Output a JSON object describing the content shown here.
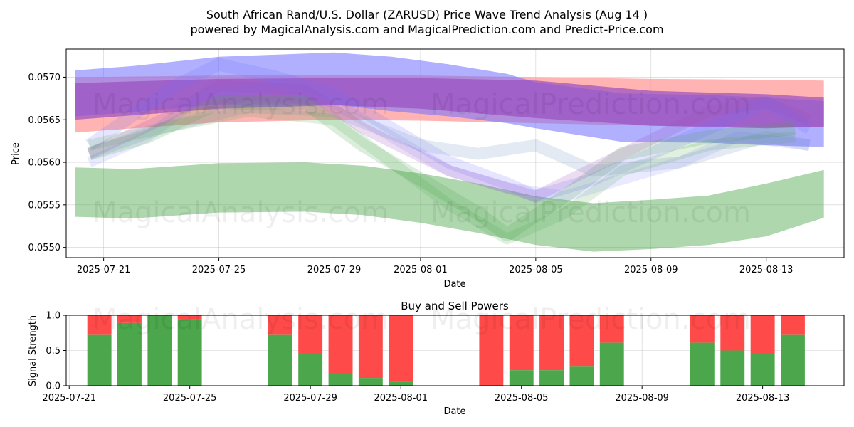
{
  "title_line1": "South African Rand/U.S. Dollar (ZARUSD) Price Wave Trend Analysis (Aug 14 )",
  "title_line2": "powered by MagicalAnalysis.com and MagicalPrediction.com and Predict-Price.com",
  "watermarks": [
    "MagicalAnalysis.com",
    "MagicalPrediction.com"
  ],
  "colors": {
    "green": "#4ca64c",
    "red": "#ff4a4a",
    "blue": "#6f6fff",
    "purple": "#9a4fc0",
    "salmon": "#ff9a9a"
  },
  "chart_data": [
    {
      "type": "area",
      "title": "",
      "xlabel": "Date",
      "ylabel": "Price",
      "xlim": [
        "2025-07-19.7",
        "2025-08-15.7"
      ],
      "ylim": [
        0.05488,
        0.05733
      ],
      "x_ticks": [
        "2025-07-21",
        "2025-07-25",
        "2025-07-29",
        "2025-08-01",
        "2025-08-05",
        "2025-08-09",
        "2025-08-13"
      ],
      "y_ticks": [
        "0.0550",
        "0.0555",
        "0.0560",
        "0.0565",
        "0.0570"
      ],
      "grid": true,
      "bands": [
        {
          "name": "green-wide",
          "color": "green",
          "opacity": 0.45,
          "dates": [
            "2025-07-20",
            "2025-07-22",
            "2025-07-25",
            "2025-07-28",
            "2025-07-30",
            "2025-08-01",
            "2025-08-03",
            "2025-08-05",
            "2025-08-07",
            "2025-08-09",
            "2025-08-11",
            "2025-08-13",
            "2025-08-15"
          ],
          "upper": [
            0.05594,
            0.05592,
            0.05599,
            0.056,
            0.05596,
            0.05587,
            0.05575,
            0.0556,
            0.05552,
            0.05556,
            0.05561,
            0.05575,
            0.05591
          ],
          "lower": [
            0.05536,
            0.05534,
            0.05541,
            0.05542,
            0.05538,
            0.05529,
            0.05517,
            0.05503,
            0.05495,
            0.05498,
            0.05503,
            0.05513,
            0.05535
          ]
        },
        {
          "name": "salmon",
          "color": "salmon",
          "opacity": 0.75,
          "dates": [
            "2025-07-20",
            "2025-07-25",
            "2025-07-29",
            "2025-08-01",
            "2025-08-05",
            "2025-08-09",
            "2025-08-13",
            "2025-08-15"
          ],
          "upper": [
            0.057,
            0.05702,
            0.05703,
            0.05702,
            0.057,
            0.05698,
            0.05697,
            0.05696
          ],
          "lower": [
            0.05635,
            0.05647,
            0.0565,
            0.05649,
            0.05646,
            0.05643,
            0.05642,
            0.05641
          ]
        },
        {
          "name": "blue-wide",
          "color": "blue",
          "opacity": 0.55,
          "dates": [
            "2025-07-20",
            "2025-07-22",
            "2025-07-25",
            "2025-07-29",
            "2025-07-31",
            "2025-08-02",
            "2025-08-04",
            "2025-08-05",
            "2025-08-08",
            "2025-08-11",
            "2025-08-13",
            "2025-08-15"
          ],
          "upper": [
            0.05708,
            0.05713,
            0.05724,
            0.05729,
            0.05724,
            0.05715,
            0.05704,
            0.05694,
            0.05681,
            0.05679,
            0.05676,
            0.05672
          ],
          "lower": [
            0.05654,
            0.05659,
            0.05668,
            0.05668,
            0.0566,
            0.05654,
            0.05646,
            0.0564,
            0.05624,
            0.05623,
            0.0562,
            0.05618
          ]
        },
        {
          "name": "purple",
          "color": "purple",
          "opacity": 0.7,
          "dates": [
            "2025-07-20",
            "2025-07-25",
            "2025-07-29",
            "2025-08-01",
            "2025-08-05",
            "2025-08-09",
            "2025-08-13",
            "2025-08-15"
          ],
          "upper": [
            0.05693,
            0.05698,
            0.05699,
            0.05699,
            0.05696,
            0.05684,
            0.0568,
            0.05676
          ],
          "lower": [
            0.0565,
            0.05663,
            0.05667,
            0.05663,
            0.05652,
            0.05643,
            0.0564,
            0.05642
          ]
        }
      ],
      "waves": [
        {
          "color": "blue",
          "opacity": 0.18,
          "width": 0.00015,
          "dates": [
            "2025-07-20.5",
            "2025-07-22",
            "2025-07-23.5",
            "2025-07-25",
            "2025-07-27",
            "2025-07-29",
            "2025-07-31",
            "2025-08-02",
            "2025-08-04",
            "2025-08-05",
            "2025-08-07",
            "2025-08-09",
            "2025-08-11",
            "2025-08-13",
            "2025-08-14.5"
          ],
          "prices": [
            0.0562,
            0.05655,
            0.0569,
            0.05715,
            0.057,
            0.0568,
            0.0564,
            0.056,
            0.05575,
            0.0556,
            0.0558,
            0.0561,
            0.0564,
            0.0567,
            0.0564
          ]
        },
        {
          "color": "blue",
          "opacity": 0.15,
          "width": 0.00013,
          "dates": [
            "2025-07-20.5",
            "2025-07-22.5",
            "2025-07-24.5",
            "2025-07-27",
            "2025-07-29",
            "2025-07-31",
            "2025-08-02",
            "2025-08-04",
            "2025-08-06",
            "2025-08-08",
            "2025-08-10",
            "2025-08-12",
            "2025-08-14.5"
          ],
          "prices": [
            0.056,
            0.0563,
            0.0568,
            0.0569,
            0.0567,
            0.0563,
            0.0559,
            0.0557,
            0.0556,
            0.0558,
            0.056,
            0.0563,
            0.0562
          ]
        },
        {
          "color": "steelblue",
          "opacity": 0.2,
          "width": 0.00014,
          "dates": [
            "2025-07-20.5",
            "2025-07-23",
            "2025-07-26",
            "2025-07-29",
            "2025-08-01",
            "2025-08-03",
            "2025-08-05",
            "2025-08-07",
            "2025-08-10",
            "2025-08-13",
            "2025-08-14.5"
          ],
          "prices": [
            0.0561,
            0.0564,
            0.05665,
            0.0566,
            0.0562,
            0.0561,
            0.0562,
            0.0559,
            0.056,
            0.0563,
            0.0562
          ]
        },
        {
          "color": "green",
          "opacity": 0.2,
          "width": 0.00016,
          "dates": [
            "2025-07-20.5",
            "2025-07-22.5",
            "2025-07-25",
            "2025-07-28",
            "2025-07-30",
            "2025-08-01",
            "2025-08-03",
            "2025-08-04",
            "2025-08-06",
            "2025-08-08",
            "2025-08-11",
            "2025-08-14"
          ],
          "prices": [
            0.0561,
            0.0563,
            0.0567,
            0.0567,
            0.0562,
            0.0558,
            0.0554,
            0.05515,
            0.0556,
            0.0561,
            0.0563,
            0.0564
          ]
        },
        {
          "color": "green",
          "opacity": 0.17,
          "width": 0.00013,
          "dates": [
            "2025-07-20.5",
            "2025-07-23",
            "2025-07-26",
            "2025-07-29",
            "2025-07-31",
            "2025-08-02",
            "2025-08-04",
            "2025-08-06",
            "2025-08-08",
            "2025-08-11",
            "2025-08-14"
          ],
          "prices": [
            0.0562,
            0.0564,
            0.0566,
            0.0565,
            0.056,
            0.0555,
            0.0551,
            0.0554,
            0.0559,
            0.0562,
            0.0563
          ]
        },
        {
          "color": "purple",
          "opacity": 0.2,
          "width": 0.00013,
          "dates": [
            "2025-07-20.5",
            "2025-07-23",
            "2025-07-25",
            "2025-07-28",
            "2025-07-30",
            "2025-08-02",
            "2025-08-05",
            "2025-08-08",
            "2025-08-11",
            "2025-08-13",
            "2025-08-14.5"
          ],
          "prices": [
            0.0561,
            0.0565,
            0.0569,
            0.05685,
            0.0564,
            0.0559,
            0.0556,
            0.0561,
            0.0566,
            0.0567,
            0.0565
          ]
        }
      ]
    },
    {
      "type": "bar",
      "title": "Buy and Sell Powers",
      "xlabel": "Date",
      "ylabel": "Signal Strength",
      "xlim": [
        "2025-07-20.9",
        "2025-08-15.7"
      ],
      "ylim": [
        0,
        1
      ],
      "x_ticks": [
        "2025-07-21",
        "2025-07-25",
        "2025-07-29",
        "2025-08-01",
        "2025-08-05",
        "2025-08-09",
        "2025-08-13"
      ],
      "y_ticks": [
        "0.0",
        "0.5",
        "1.0"
      ],
      "grid": true,
      "series_names": [
        "Buy",
        "Sell"
      ],
      "dates": [
        "2025-07-22",
        "2025-07-23",
        "2025-07-24",
        "2025-07-25",
        "2025-07-28",
        "2025-07-29",
        "2025-07-30",
        "2025-07-31",
        "2025-08-01",
        "2025-08-04",
        "2025-08-05",
        "2025-08-06",
        "2025-08-07",
        "2025-08-08",
        "2025-08-11",
        "2025-08-12",
        "2025-08-13",
        "2025-08-14"
      ],
      "buy": [
        0.72,
        0.89,
        1.0,
        0.94,
        0.72,
        0.45,
        0.17,
        0.11,
        0.06,
        0.0,
        0.22,
        0.22,
        0.28,
        0.61,
        0.61,
        0.5,
        0.45,
        0.72
      ]
    }
  ]
}
